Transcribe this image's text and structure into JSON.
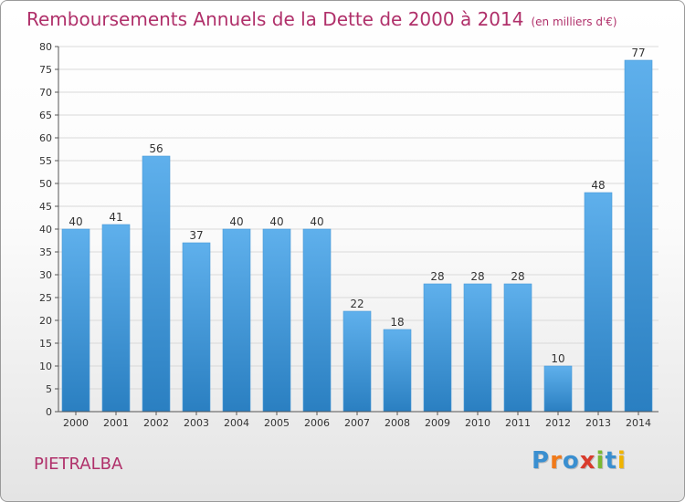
{
  "title": "Remboursements Annuels de la Dette de 2000 à 2014",
  "subtitle": "(en milliers d'€)",
  "location": "PIETRALBA",
  "logo_text": "Proxiti",
  "logo_colors": [
    "#3a8fd0",
    "#f07a1a",
    "#3a8fd0",
    "#d93b2c",
    "#7ab833",
    "#3a8fd0",
    "#f0b400"
  ],
  "colors": {
    "accent": "#b0306a",
    "bar_top": "#5fb0ec",
    "bar_bottom": "#2a7fc1",
    "grid": "#d9d9d9",
    "axis_text": "#333333"
  },
  "chart_data": {
    "type": "bar",
    "categories": [
      "2000",
      "2001",
      "2002",
      "2003",
      "2004",
      "2005",
      "2006",
      "2007",
      "2008",
      "2009",
      "2010",
      "2011",
      "2012",
      "2013",
      "2014"
    ],
    "values": [
      40,
      41,
      56,
      37,
      40,
      40,
      40,
      22,
      18,
      28,
      28,
      28,
      10,
      48,
      77
    ],
    "ylim": [
      0,
      80
    ],
    "yticks": [
      0,
      5,
      10,
      15,
      20,
      25,
      30,
      35,
      40,
      45,
      50,
      55,
      60,
      65,
      70,
      75,
      80
    ],
    "grid": true,
    "data_labels": true
  }
}
